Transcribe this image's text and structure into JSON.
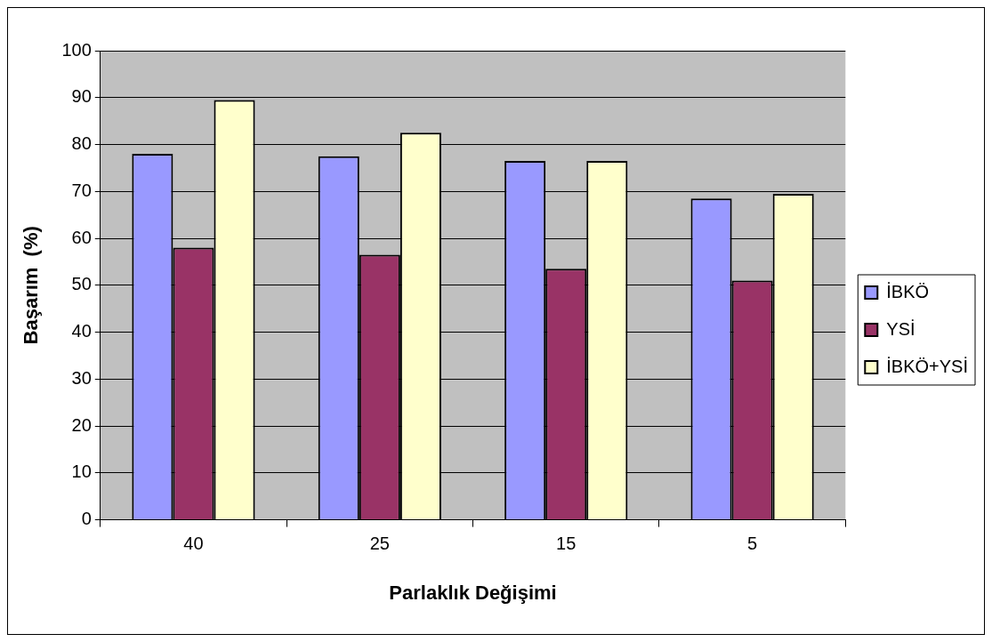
{
  "chart_data": {
    "type": "bar",
    "xlabel": "Parlaklık Değişimi",
    "ylabel": "Başarım  (%)",
    "categories": [
      "40",
      "25",
      "15",
      "5"
    ],
    "series": [
      {
        "name": "İBKÖ",
        "color": "#9999ff",
        "values": [
          78,
          77.5,
          76.5,
          68.5
        ]
      },
      {
        "name": "YSİ",
        "color": "#993366",
        "values": [
          58,
          56.5,
          53.5,
          51
        ]
      },
      {
        "name": "İBKÖ+YSİ",
        "color": "#ffffcc",
        "values": [
          89.5,
          82.5,
          76.5,
          69.5
        ]
      }
    ],
    "ylim": [
      0,
      100
    ],
    "yticks": [
      0,
      10,
      20,
      30,
      40,
      50,
      60,
      70,
      80,
      90,
      100
    ],
    "grid": "y",
    "legend": "right"
  }
}
